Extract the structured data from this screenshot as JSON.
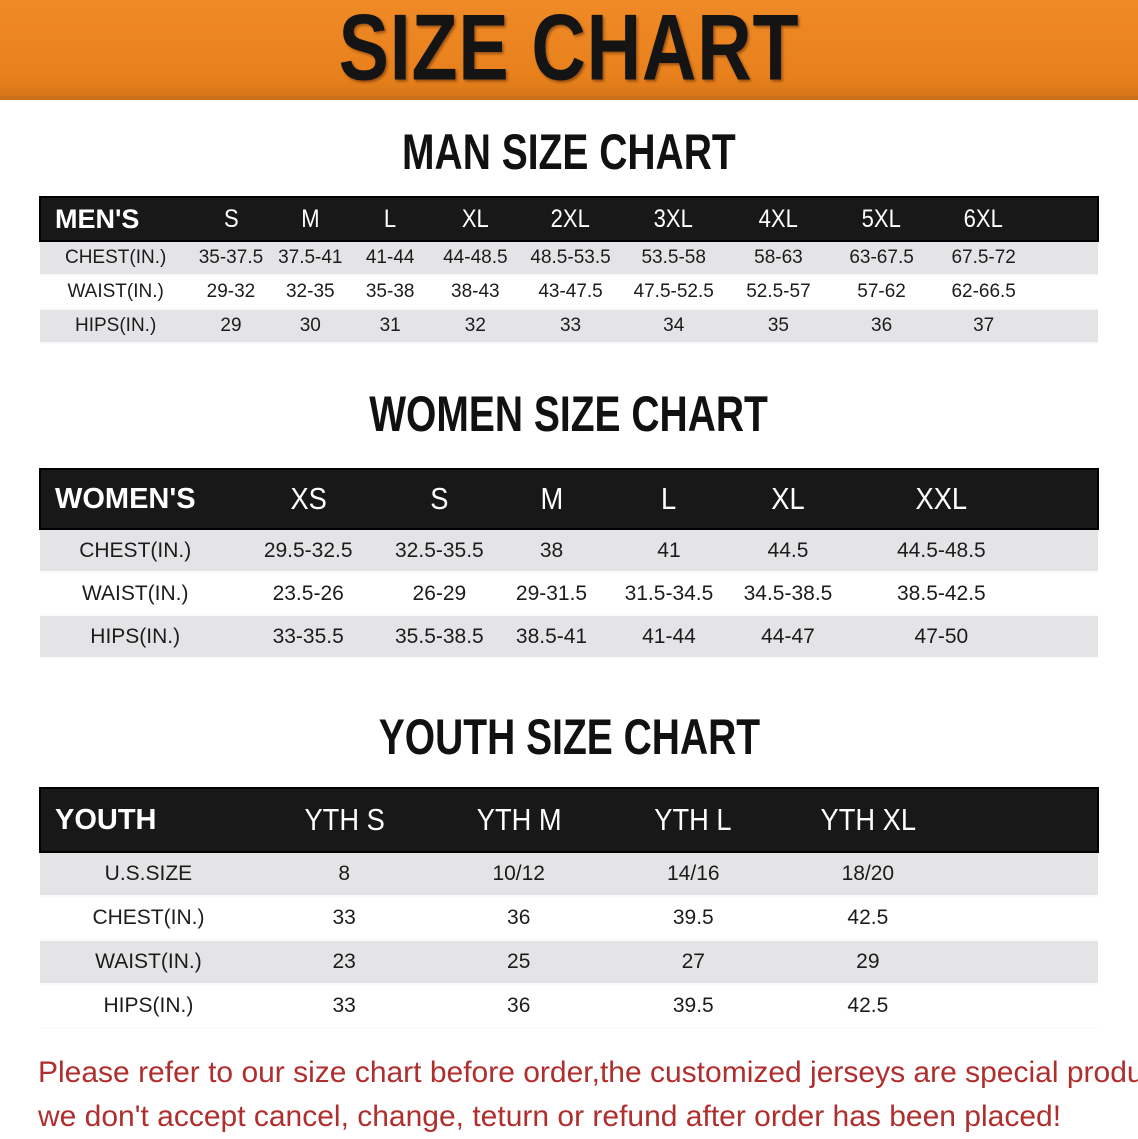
{
  "banner": {
    "title": "SIZE CHART"
  },
  "sections": [
    {
      "heading": "MAN SIZE CHART",
      "table": {
        "header_label": "MEN'S",
        "sizes": [
          "S",
          "M",
          "L",
          "XL",
          "2XL",
          "3XL",
          "4XL",
          "5XL",
          "6XL"
        ],
        "rows": [
          {
            "label": "CHEST(IN.)",
            "values": [
              "35-37.5",
              "37.5-41",
              "41-44",
              "44-48.5",
              "48.5-53.5",
              "53.5-58",
              "58-63",
              "63-67.5",
              "67.5-72"
            ]
          },
          {
            "label": "WAIST(IN.)",
            "values": [
              "29-32",
              "32-35",
              "35-38",
              "38-43",
              "43-47.5",
              "47.5-52.5",
              "52.5-57",
              "57-62",
              "62-66.5"
            ]
          },
          {
            "label": "HIPS(IN.)",
            "values": [
              "29",
              "30",
              "31",
              "32",
              "33",
              "34",
              "35",
              "36",
              "37"
            ]
          }
        ]
      }
    },
    {
      "heading": "WOMEN SIZE CHART",
      "table": {
        "header_label": "WOMEN'S",
        "sizes": [
          "XS",
          "S",
          "M",
          "L",
          "XL",
          "XXL"
        ],
        "rows": [
          {
            "label": "CHEST(IN.)",
            "values": [
              "29.5-32.5",
              "32.5-35.5",
              "38",
              "41",
              "44.5",
              "44.5-48.5"
            ]
          },
          {
            "label": "WAIST(IN.)",
            "values": [
              "23.5-26",
              "26-29",
              "29-31.5",
              "31.5-34.5",
              "34.5-38.5",
              "38.5-42.5"
            ]
          },
          {
            "label": "HIPS(IN.)",
            "values": [
              "33-35.5",
              "35.5-38.5",
              "38.5-41",
              "41-44",
              "44-47",
              "47-50"
            ]
          }
        ]
      }
    },
    {
      "heading": "YOUTH SIZE CHART",
      "table": {
        "header_label": "YOUTH",
        "sizes": [
          "YTH S",
          "YTH M",
          "YTH L",
          "YTH XL"
        ],
        "rows": [
          {
            "label": "U.S.SIZE",
            "values": [
              "8",
              "10/12",
              "14/16",
              "18/20"
            ]
          },
          {
            "label": "CHEST(IN.)",
            "values": [
              "33",
              "36",
              "39.5",
              "42.5"
            ]
          },
          {
            "label": "WAIST(IN.)",
            "values": [
              "23",
              "25",
              "27",
              "29"
            ]
          },
          {
            "label": "HIPS(IN.)",
            "values": [
              "33",
              "36",
              "39.5",
              "42.5"
            ]
          }
        ]
      }
    }
  ],
  "disclaimer": {
    "line1": "Please refer to our size chart before order,the customized jerseys are special products,",
    "line2": "we don't accept cancel, change, teturn or refund after order has been placed!"
  },
  "colors": {
    "banner_bg": "#E8811C",
    "banner_text": "#141414",
    "header_bar_bg": "#181818",
    "header_bar_text": "#FFFFFF",
    "row_alt_bg": "#E4E4E6",
    "row_bg": "#FFFFFF",
    "disclaimer_text": "#B02E2E"
  }
}
